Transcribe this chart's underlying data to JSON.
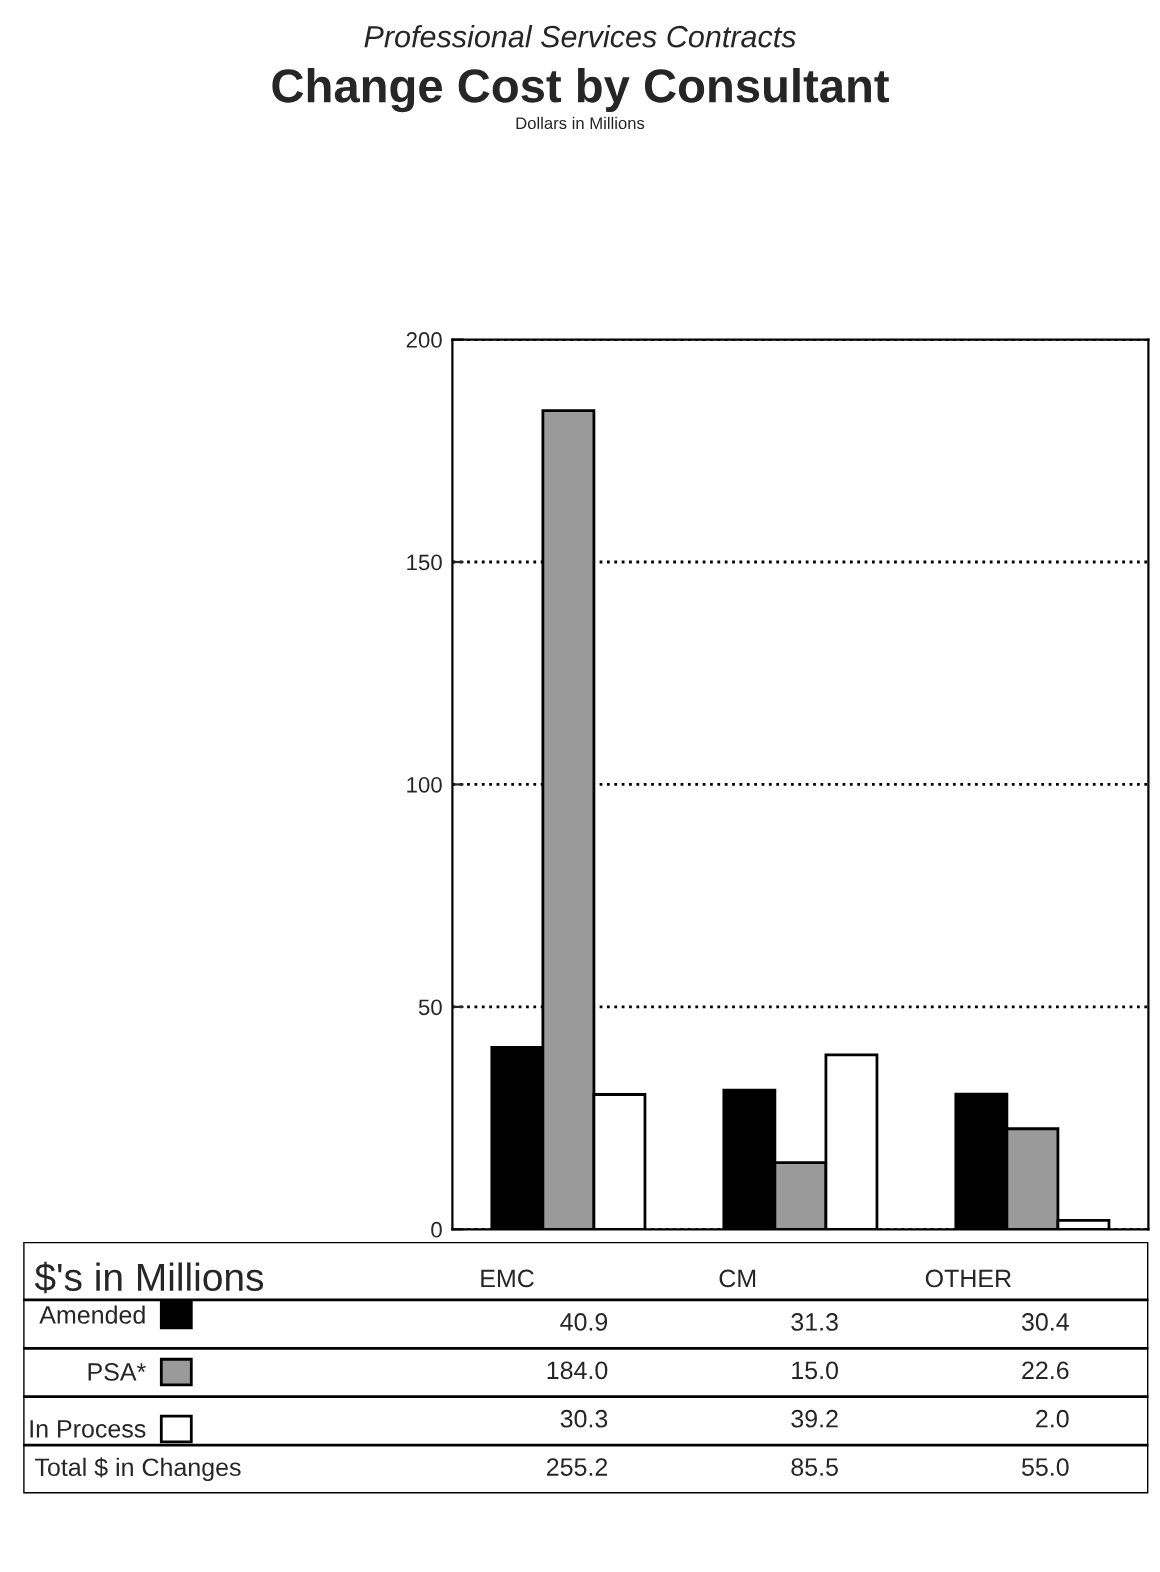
{
  "chart_data": {
    "type": "bar",
    "title": "Change Cost by Consultant",
    "subtitle": "Dollars in Millions",
    "annotations": [
      "Professional Services Contracts",
      "$'s in Millions",
      "Total $ in Changes",
      "255.2",
      "85.5",
      "55.0"
    ],
    "categories": [
      "EMC",
      "CM",
      "OTHER"
    ],
    "series": [
      {
        "name": "Amended",
        "color": "#000000",
        "values": [
          40.9,
          31.3,
          30.4
        ],
        "value_labels": [
          "40.9",
          "31.3",
          "30.4"
        ]
      },
      {
        "name": "PSA*",
        "color": "#9a9a9a",
        "values": [
          184.0,
          15.0,
          22.6
        ],
        "value_labels": [
          "184.0",
          "15.0",
          "22.6"
        ]
      },
      {
        "name": "In Process",
        "color": "#ffffff",
        "values": [
          30.3,
          39.2,
          2.0
        ],
        "value_labels": [
          "30.3",
          "39.2",
          "2.0"
        ]
      }
    ],
    "ylim": [
      0,
      200
    ],
    "yticks": [
      0,
      50,
      100,
      150,
      200
    ],
    "grid": "y",
    "legend": "bottom"
  }
}
